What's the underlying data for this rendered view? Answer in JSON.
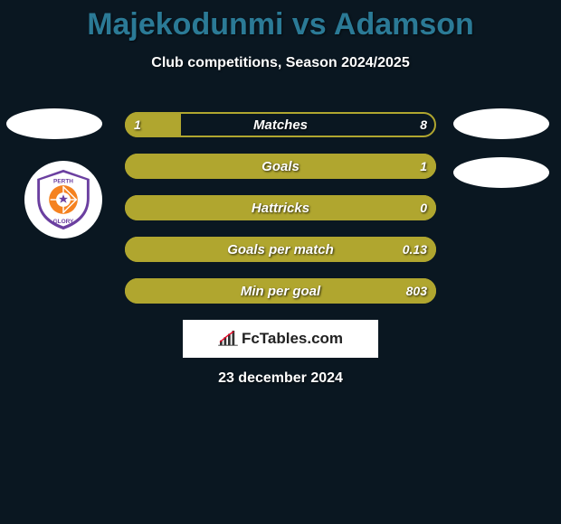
{
  "title": {
    "text": "Majekodunmi vs Adamson",
    "color": "#2b7a96",
    "fontsize": 34,
    "fontweight": 900
  },
  "subtitle": {
    "text": "Club competitions, Season 2024/2025",
    "color": "#ffffff",
    "fontsize": 16
  },
  "background_color": "#0a1721",
  "bars": {
    "track_border_color": "#b0a62f",
    "fill_color": "#b0a62f",
    "label_color": "#ffffff",
    "value_color": "#ffffff",
    "label_fontsize": 15,
    "value_fontsize": 14,
    "rows": [
      {
        "label": "Matches",
        "left_val": "1",
        "right_val": "8",
        "left_pct": 18.0
      },
      {
        "label": "Goals",
        "left_val": "",
        "right_val": "1",
        "left_pct": 100.0
      },
      {
        "label": "Hattricks",
        "left_val": "",
        "right_val": "0",
        "left_pct": 100.0
      },
      {
        "label": "Goals per match",
        "left_val": "",
        "right_val": "0.13",
        "left_pct": 100.0
      },
      {
        "label": "Min per goal",
        "left_val": "",
        "right_val": "803",
        "left_pct": 100.0
      }
    ]
  },
  "left_club": {
    "name": "Perth Glory",
    "badge_colors": {
      "primary": "#6b3fa0",
      "accent": "#f58220",
      "white": "#ffffff"
    }
  },
  "branding": {
    "text": "FcTables.com",
    "bg": "#ffffff",
    "text_color": "#222222"
  },
  "date": {
    "text": "23 december 2024",
    "color": "#ffffff",
    "fontsize": 16
  }
}
